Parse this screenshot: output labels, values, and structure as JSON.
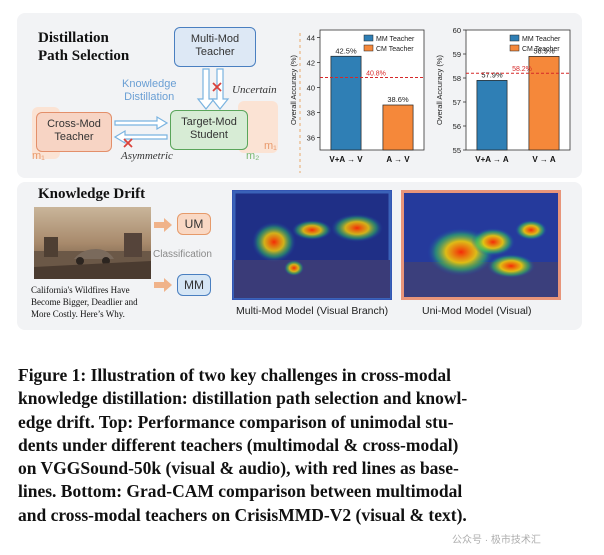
{
  "top_panel": {
    "title_line1": "Distillation",
    "title_line2": "Path  Selection",
    "multimod_teacher": [
      "Multi-Mod",
      "Teacher"
    ],
    "crossmod_teacher": [
      "Cross-Mod",
      "Teacher"
    ],
    "target_student": [
      "Target-Mod",
      "Student"
    ],
    "knowledge_distillation": [
      "Knowledge",
      "Distillation"
    ],
    "uncertain": "Uncertain",
    "asymmetric": "Asymmetric",
    "m1": "m₁",
    "m2": "m₂",
    "m1_right": "m₁"
  },
  "chart_data": [
    {
      "type": "bar",
      "categories": [
        "V+A → V",
        "A → V"
      ],
      "series": [
        {
          "name": "MM Teacher",
          "color": "#2f7fb5",
          "values": [
            42.5,
            null
          ]
        },
        {
          "name": "CM Teacher",
          "color": "#f5883a",
          "values": [
            null,
            38.6
          ]
        }
      ],
      "data_labels": [
        "42.5%",
        "38.6%"
      ],
      "baseline": 40.8,
      "baseline_label": "40.8%",
      "ylabel": "Overall Accuracy (%)",
      "ylim": [
        35,
        44.6
      ],
      "yticks": [
        "36",
        "38",
        "40",
        "42",
        "44"
      ],
      "legend": [
        "MM Teacher",
        "CM Teacher"
      ]
    },
    {
      "type": "bar",
      "categories": [
        "V+A → A",
        "V → A"
      ],
      "series": [
        {
          "name": "MM Teacher",
          "color": "#2f7fb5",
          "values": [
            57.9,
            null
          ]
        },
        {
          "name": "CM Teacher",
          "color": "#f5883a",
          "values": [
            null,
            58.9
          ]
        }
      ],
      "data_labels": [
        "57.9%",
        "58.9%"
      ],
      "baseline": 58.2,
      "baseline_label": "58.2%",
      "ylabel": "Overall Accuracy (%)",
      "ylim": [
        55,
        60
      ],
      "yticks": [
        "55",
        "56",
        "57",
        "58",
        "59",
        "60"
      ],
      "legend": [
        "MM Teacher",
        "CM Teacher"
      ]
    }
  ],
  "bottom_panel": {
    "title": "Knowledge Drift",
    "news_caption": [
      "California's  Wildfires  Have",
      "Become Bigger, Deadlier and",
      "More Costly. Here’s Why."
    ],
    "um_label": "UM",
    "mm_label": "MM",
    "classification": "Classification",
    "left_heatmap_caption": "Multi-Mod Model (Visual Branch)",
    "right_heatmap_caption": "Uni-Mod Model (Visual)"
  },
  "caption": {
    "lines": [
      "Figure 1: Illustration of two key challenges in cross-modal",
      "knowledge distillation: distillation path selection and knowl-",
      "edge drift. Top: Performance comparison of unimodal stu-",
      "dents under different teachers (multimodal & cross-modal)",
      "on VGGSound-50k (visual & audio), with red lines as base-",
      "lines. Bottom: Grad-CAM comparison between multimodal",
      "and cross-modal teachers on CrisisMMD-V2 (visual & text)."
    ]
  },
  "watermark": "公众号 · 极市技术汇"
}
